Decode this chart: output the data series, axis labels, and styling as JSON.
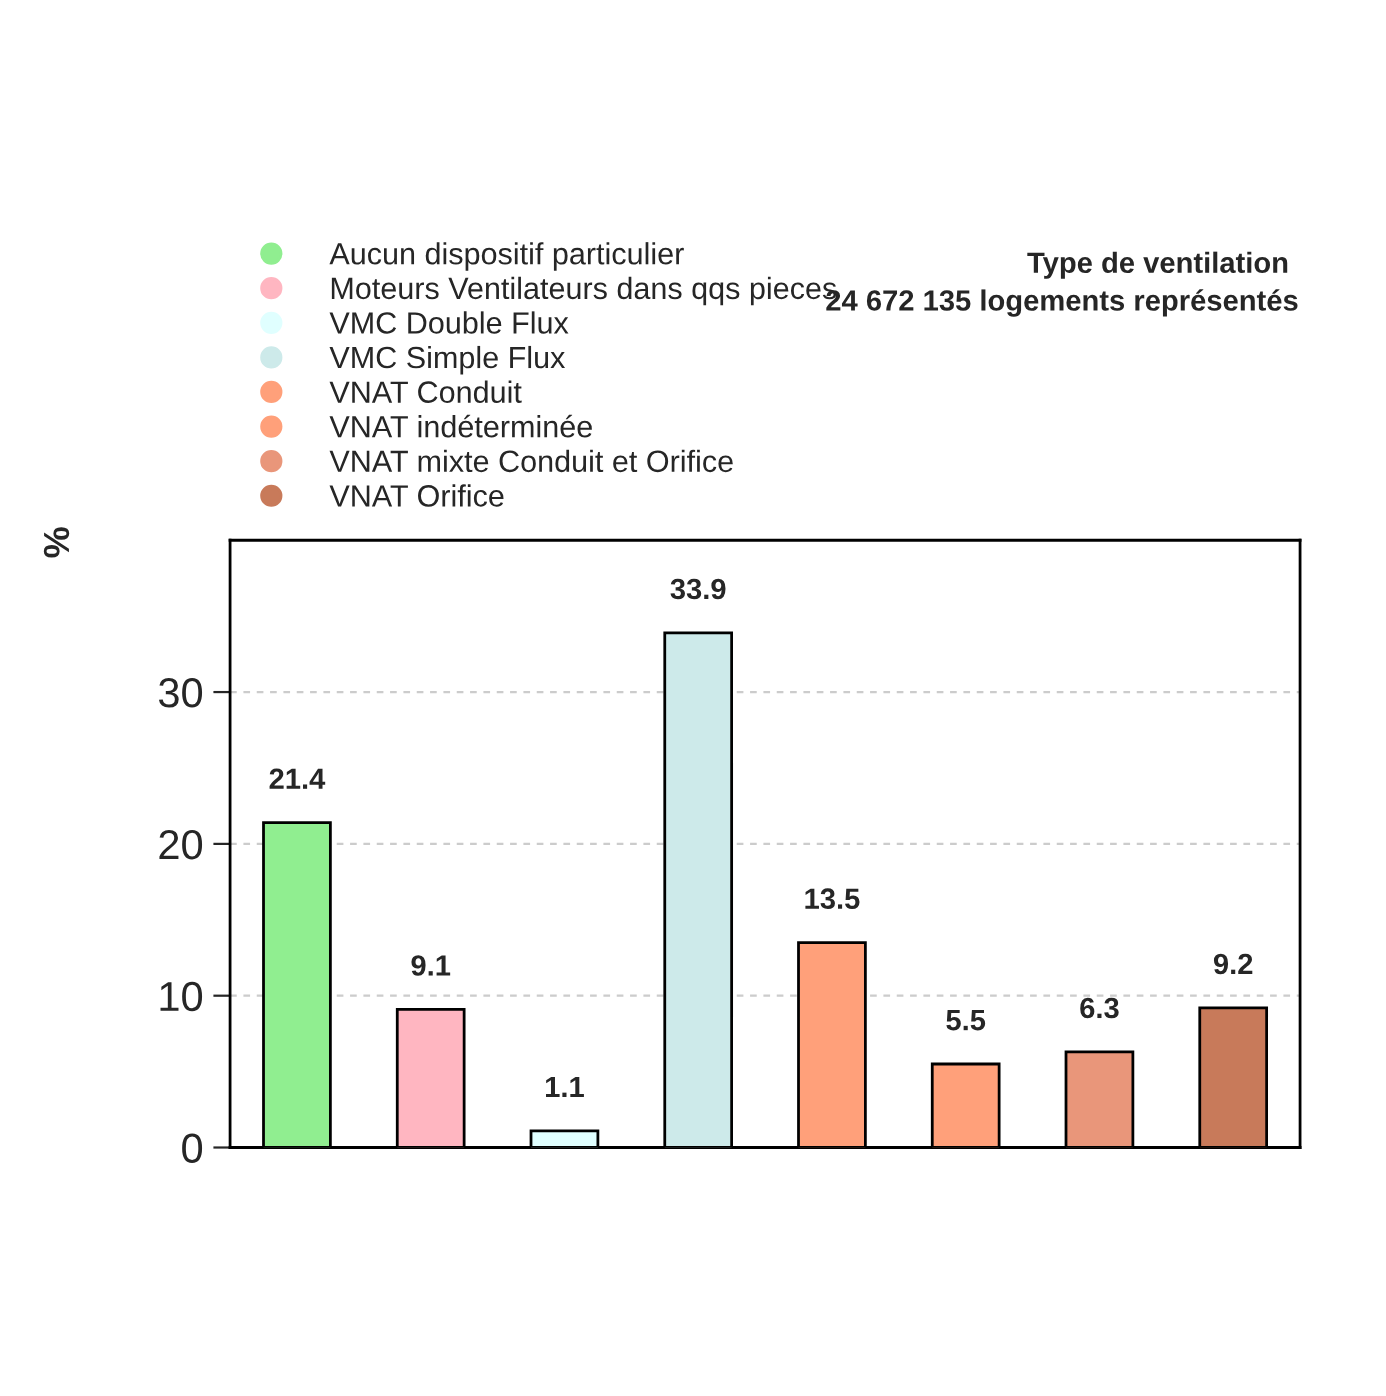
{
  "chart_data": {
    "type": "bar",
    "title": "Type de ventilation",
    "subtitle": "24 672 135 logements représentés",
    "ylabel": "%",
    "categories": [
      null,
      null,
      null,
      null,
      null,
      null,
      null,
      null
    ],
    "series": [
      {
        "name": "Aucun dispositif particulier",
        "color": "#90ee90",
        "values": [
          21.4,
          null,
          null,
          null,
          null,
          null,
          null,
          null
        ]
      },
      {
        "name": "Moteurs Ventilateurs dans qqs pieces",
        "color": "#ffb6c1",
        "values": [
          null,
          9.1,
          null,
          null,
          null,
          null,
          null,
          null
        ]
      },
      {
        "name": "VMC Double Flux",
        "color": "#e0ffff",
        "values": [
          null,
          null,
          1.1,
          null,
          null,
          null,
          null,
          null
        ]
      },
      {
        "name": "VMC Simple Flux",
        "color": "#cdeaea",
        "values": [
          null,
          null,
          null,
          33.9,
          null,
          null,
          null,
          null
        ]
      },
      {
        "name": "VNAT Conduit",
        "color": "#ffa07a",
        "values": [
          null,
          null,
          null,
          null,
          13.5,
          null,
          null,
          null
        ]
      },
      {
        "name": "VNAT indéterminée",
        "color": "#ffa07a",
        "values": [
          null,
          null,
          null,
          null,
          null,
          5.5,
          null,
          null
        ]
      },
      {
        "name": "VNAT mixte Conduit et Orifice",
        "color": "#e9967a",
        "values": [
          null,
          null,
          null,
          null,
          null,
          null,
          6.3,
          null
        ]
      },
      {
        "name": "VNAT Orifice",
        "color": "#c87a5a",
        "values": [
          null,
          null,
          null,
          null,
          null,
          null,
          null,
          9.2
        ]
      }
    ],
    "ylim": [
      0,
      40
    ],
    "yticks": [
      0,
      10,
      20,
      30
    ],
    "grid": "y",
    "legend": "top left",
    "marker": "circle",
    "tick_labels": "y",
    "data_labels": true
  }
}
